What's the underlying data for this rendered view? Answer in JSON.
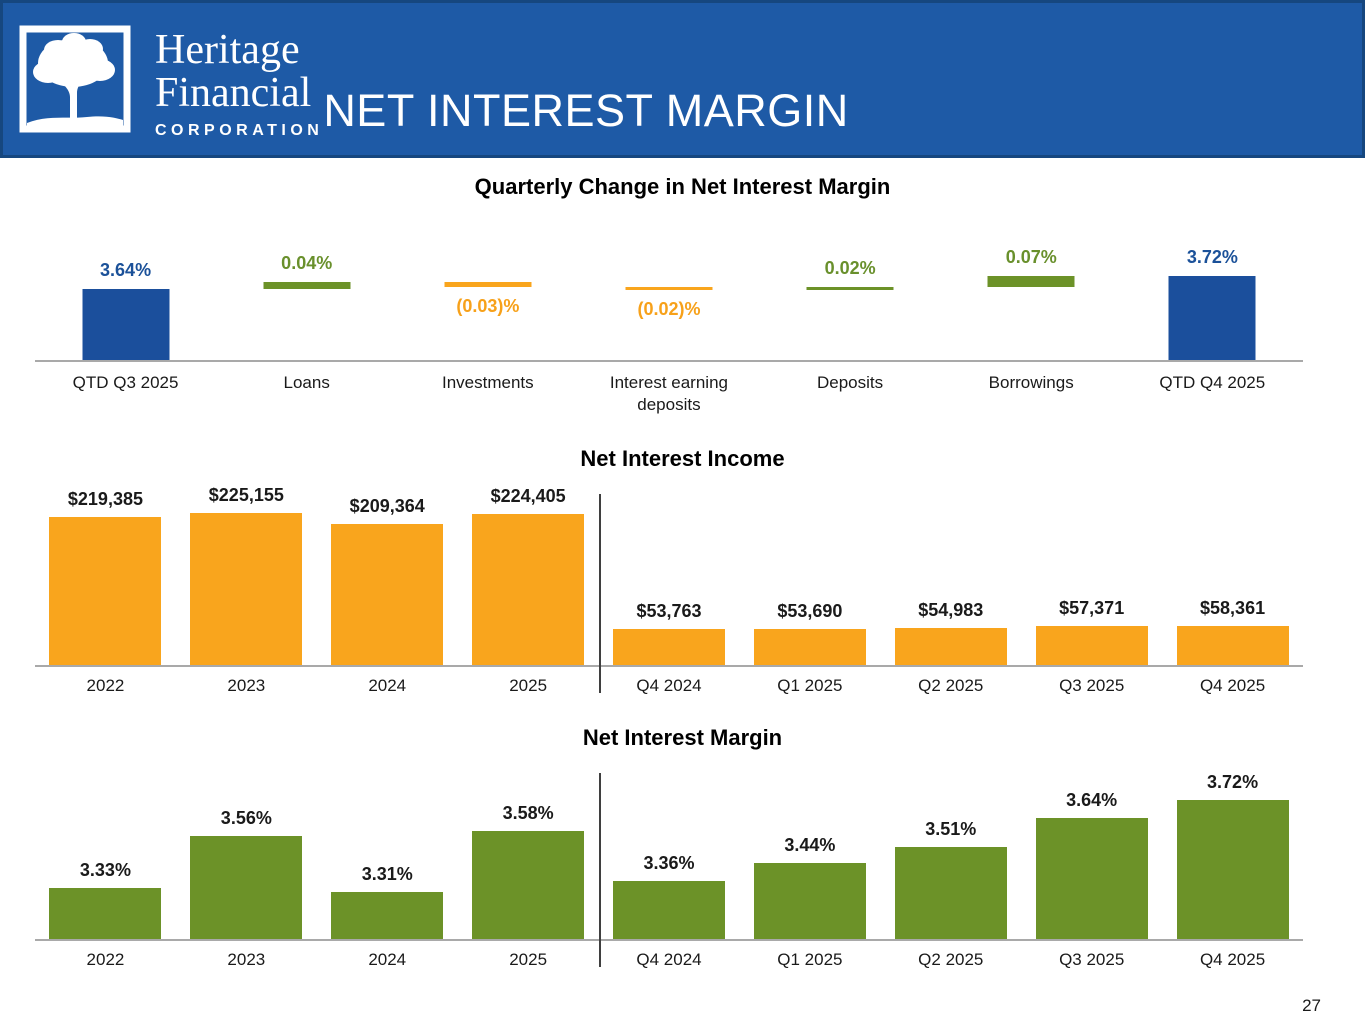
{
  "header": {
    "logo": {
      "line1": "Heritage",
      "line2": "Financial",
      "line3": "CORPORATION"
    },
    "title": "NET INTEREST MARGIN"
  },
  "page_number": "27",
  "colors": {
    "header_blue": "#1E5AA6",
    "header_border": "#16477F",
    "bar_blue": "#1B4F9C",
    "bar_green": "#6C9228",
    "bar_orange": "#F9A51D",
    "label_blue": "#1B5199",
    "label_green": "#69902C",
    "label_orange": "#F7A11A",
    "axis_gray": "#A9A9A9",
    "divider_gray": "#3F3F3F"
  },
  "chart_data": [
    {
      "id": "waterfall",
      "type": "bar",
      "subtype": "waterfall",
      "title": "Quarterly Change in Net Interest Margin",
      "unit": "%",
      "axis_base_value": 3.2,
      "columns": [
        {
          "label": "QTD Q3 2025",
          "kind": "total",
          "value": 3.64,
          "display": "3.64%",
          "color": "blue"
        },
        {
          "label": "Loans",
          "kind": "increase",
          "delta": 0.04,
          "start": 3.64,
          "end": 3.68,
          "display": "0.04%",
          "color": "green"
        },
        {
          "label": "Investments",
          "kind": "decrease",
          "delta": -0.03,
          "start": 3.68,
          "end": 3.65,
          "display": "(0.03)%",
          "color": "orange"
        },
        {
          "label": "Interest earning deposits",
          "kind": "decrease",
          "delta": -0.02,
          "start": 3.65,
          "end": 3.63,
          "display": "(0.02)%",
          "color": "orange"
        },
        {
          "label": "Deposits",
          "kind": "increase",
          "delta": 0.02,
          "start": 3.63,
          "end": 3.65,
          "display": "0.02%",
          "color": "green"
        },
        {
          "label": "Borrowings",
          "kind": "increase",
          "delta": 0.07,
          "start": 3.65,
          "end": 3.72,
          "display": "0.07%",
          "color": "green"
        },
        {
          "label": "QTD Q4 2025",
          "kind": "total",
          "value": 3.72,
          "display": "3.72%",
          "color": "blue"
        }
      ]
    },
    {
      "id": "net-interest-income",
      "type": "bar",
      "title": "Net Interest Income",
      "unit": "$ thousands",
      "categories": [
        "2022",
        "2023",
        "2024",
        "2025",
        "Q4 2024",
        "Q1 2025",
        "Q2 2025",
        "Q3 2025",
        "Q4 2025"
      ],
      "values": [
        219385,
        225155,
        209364,
        224405,
        53763,
        53690,
        54983,
        57371,
        58361
      ],
      "labels": [
        "$219,385",
        "$225,155",
        "$209,364",
        "$224,405",
        "$53,763",
        "$53,690",
        "$54,983",
        "$57,371",
        "$58,361"
      ],
      "divider_after_index": 3,
      "bar_color": "orange",
      "ylim": [
        0,
        235000
      ],
      "grid": false,
      "legend": "none"
    },
    {
      "id": "net-interest-margin",
      "type": "bar",
      "title": "Net Interest Margin",
      "unit": "%",
      "categories": [
        "2022",
        "2023",
        "2024",
        "2025",
        "Q4 2024",
        "Q1 2025",
        "Q2 2025",
        "Q3 2025",
        "Q4 2025"
      ],
      "values": [
        3.33,
        3.56,
        3.31,
        3.58,
        3.36,
        3.44,
        3.51,
        3.64,
        3.72
      ],
      "labels": [
        "3.33%",
        "3.56%",
        "3.31%",
        "3.58%",
        "3.36%",
        "3.44%",
        "3.51%",
        "3.64%",
        "3.72%"
      ],
      "divider_after_index": 3,
      "bar_color": "green",
      "ylim": [
        3.1,
        3.9
      ],
      "grid": false,
      "legend": "none"
    }
  ]
}
